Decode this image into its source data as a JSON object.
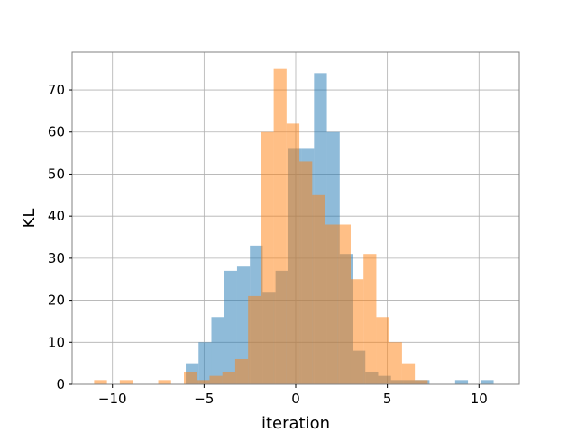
{
  "chart_data": {
    "type": "bar",
    "histogram": true,
    "title": "",
    "xlabel": "iteration",
    "ylabel": "KL",
    "xlim": [
      -12.2,
      12.2
    ],
    "ylim": [
      0,
      79
    ],
    "grid": true,
    "xticks": [
      -10,
      -5,
      0,
      5,
      10
    ],
    "yticks": [
      0,
      10,
      20,
      30,
      40,
      50,
      60,
      70
    ],
    "xtick_labels": [
      "−10",
      "−5",
      "0",
      "5",
      "10"
    ],
    "ytick_labels": [
      "0",
      "10",
      "20",
      "30",
      "40",
      "50",
      "60",
      "70"
    ],
    "series": [
      {
        "color": "#1f77b4",
        "opacity": 0.5,
        "bins": [
          [
            -6.0,
            -5.3,
            5
          ],
          [
            -5.3,
            -4.6,
            10
          ],
          [
            -4.6,
            -3.9,
            16
          ],
          [
            -3.9,
            -3.2,
            27
          ],
          [
            -3.2,
            -2.5,
            28
          ],
          [
            -2.5,
            -1.8,
            33
          ],
          [
            -1.8,
            -1.1,
            22
          ],
          [
            -1.1,
            -0.4,
            27
          ],
          [
            -0.4,
            0.3,
            56
          ],
          [
            0.3,
            1.0,
            56
          ],
          [
            1.0,
            1.7,
            74
          ],
          [
            1.7,
            2.4,
            60
          ],
          [
            2.4,
            3.1,
            31
          ],
          [
            3.1,
            3.8,
            8
          ],
          [
            3.8,
            4.5,
            3
          ],
          [
            4.5,
            5.2,
            2
          ],
          [
            5.2,
            5.9,
            1
          ],
          [
            5.9,
            6.6,
            1
          ],
          [
            6.6,
            7.3,
            1
          ],
          [
            8.7,
            9.4,
            1
          ],
          [
            10.1,
            10.8,
            1
          ]
        ]
      },
      {
        "color": "#ff7f0e",
        "opacity": 0.5,
        "bins": [
          [
            -11.0,
            -10.3,
            1
          ],
          [
            -9.6,
            -8.9,
            1
          ],
          [
            -7.5,
            -6.8,
            1
          ],
          [
            -6.1,
            -5.4,
            3
          ],
          [
            -5.4,
            -4.7,
            1
          ],
          [
            -4.7,
            -4.0,
            2
          ],
          [
            -4.0,
            -3.3,
            3
          ],
          [
            -3.3,
            -2.6,
            6
          ],
          [
            -2.6,
            -1.9,
            21
          ],
          [
            -1.9,
            -1.2,
            60
          ],
          [
            -1.2,
            -0.5,
            75
          ],
          [
            -0.5,
            0.2,
            62
          ],
          [
            0.2,
            0.9,
            53
          ],
          [
            0.9,
            1.6,
            45
          ],
          [
            1.6,
            2.3,
            38
          ],
          [
            2.3,
            3.0,
            38
          ],
          [
            3.0,
            3.7,
            25
          ],
          [
            3.7,
            4.4,
            31
          ],
          [
            4.4,
            5.1,
            16
          ],
          [
            5.1,
            5.8,
            10
          ],
          [
            5.8,
            6.5,
            5
          ],
          [
            6.5,
            7.2,
            1
          ]
        ]
      }
    ]
  }
}
